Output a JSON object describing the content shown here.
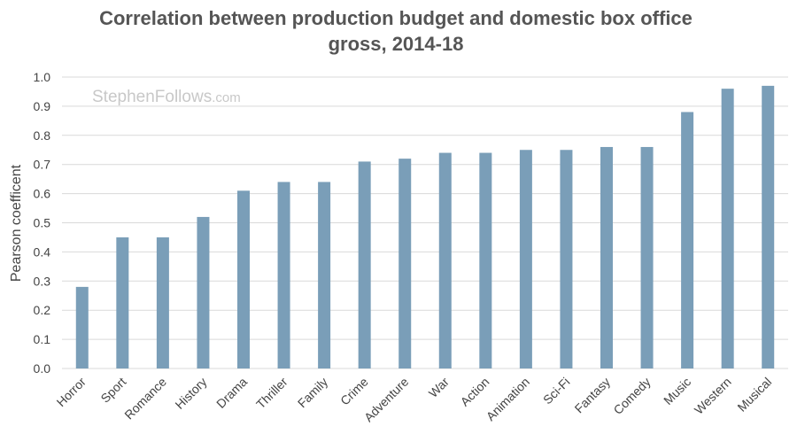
{
  "chart_data": {
    "type": "bar",
    "title_line1": "Correlation between production budget and domestic box office",
    "title_line2": "gross, 2014-18",
    "xlabel": "",
    "ylabel": "Pearson coefficent",
    "ylim": [
      0,
      1.0
    ],
    "yticks": [
      "0.0",
      "0.1",
      "0.2",
      "0.3",
      "0.4",
      "0.5",
      "0.6",
      "0.7",
      "0.8",
      "0.9",
      "1.0"
    ],
    "categories": [
      "Horror",
      "Sport",
      "Romance",
      "History",
      "Drama",
      "Thriller",
      "Family",
      "Crime",
      "Adventure",
      "War",
      "Action",
      "Animation",
      "Sci-Fi",
      "Fantasy",
      "Comedy",
      "Music",
      "Western",
      "Musical"
    ],
    "values": [
      0.28,
      0.45,
      0.45,
      0.52,
      0.61,
      0.64,
      0.64,
      0.71,
      0.72,
      0.74,
      0.74,
      0.75,
      0.75,
      0.76,
      0.76,
      0.88,
      0.96,
      0.97
    ],
    "bar_color": "#7a9eb8",
    "watermark": {
      "main": "StephenFollows",
      "suffix": ".com"
    }
  }
}
